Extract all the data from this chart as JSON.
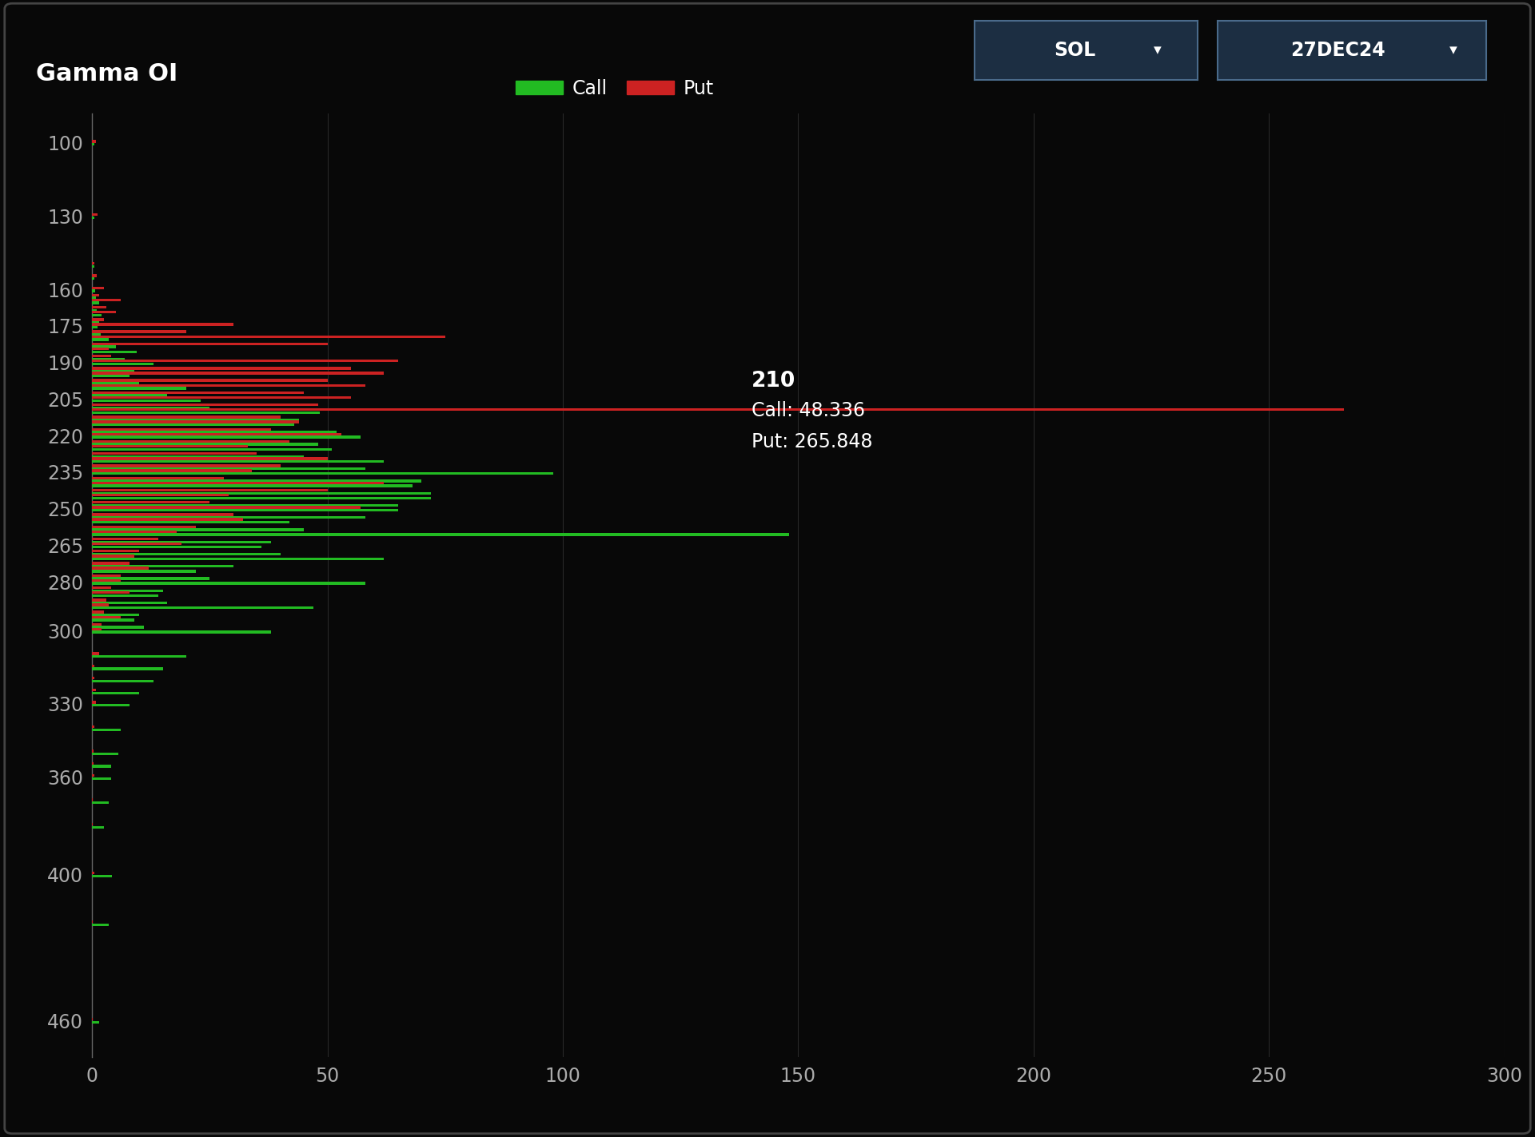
{
  "title": "Gamma OI",
  "ticker": "SOL",
  "expiry": "27DEC24",
  "background_color": "#080808",
  "call_color": "#22bb22",
  "put_color": "#cc2222",
  "text_color": "#aaaaaa",
  "annotation_strike": "210",
  "annotation_call": "Call: 48.336",
  "annotation_put": "Put: 265.848",
  "xlim": [
    0,
    300
  ],
  "yticks": [
    100,
    130,
    160,
    175,
    190,
    205,
    220,
    235,
    250,
    265,
    280,
    300,
    330,
    360,
    400,
    460
  ],
  "strikes": [
    100,
    130,
    150,
    155,
    160,
    163,
    165,
    168,
    170,
    173,
    175,
    178,
    180,
    183,
    185,
    188,
    190,
    193,
    195,
    198,
    200,
    203,
    205,
    208,
    210,
    213,
    215,
    218,
    220,
    223,
    225,
    228,
    230,
    233,
    235,
    238,
    240,
    243,
    245,
    248,
    250,
    253,
    255,
    258,
    260,
    263,
    265,
    268,
    270,
    273,
    275,
    278,
    280,
    283,
    285,
    288,
    290,
    293,
    295,
    298,
    300,
    310,
    315,
    320,
    325,
    330,
    340,
    350,
    355,
    360,
    370,
    380,
    400,
    420,
    460
  ],
  "call_vals": [
    0.5,
    0.5,
    0.5,
    0.5,
    0.6,
    0.8,
    1.5,
    1.0,
    2.0,
    1.5,
    1.2,
    1.8,
    3.5,
    5.0,
    9.5,
    7.0,
    13.0,
    9.0,
    8.0,
    10.0,
    20.0,
    16.0,
    23.0,
    25.0,
    48.336,
    44.0,
    43.0,
    52.0,
    57.0,
    48.0,
    51.0,
    45.0,
    62.0,
    58.0,
    98.0,
    70.0,
    68.0,
    72.0,
    72.0,
    65.0,
    65.0,
    58.0,
    42.0,
    45.0,
    148.0,
    38.0,
    36.0,
    40.0,
    62.0,
    30.0,
    22.0,
    25.0,
    58.0,
    15.0,
    14.0,
    16.0,
    47.0,
    10.0,
    9.0,
    11.0,
    38.0,
    20.0,
    15.0,
    13.0,
    10.0,
    8.0,
    6.0,
    5.5,
    4.0,
    4.0,
    3.5,
    2.5,
    4.2,
    3.5,
    1.5
  ],
  "put_vals": [
    0.8,
    1.2,
    0.5,
    1.0,
    2.5,
    1.5,
    6.0,
    3.0,
    5.0,
    2.5,
    30.0,
    20.0,
    75.0,
    50.0,
    3.5,
    4.0,
    65.0,
    55.0,
    62.0,
    50.0,
    58.0,
    45.0,
    55.0,
    48.0,
    265.848,
    40.0,
    44.0,
    38.0,
    53.0,
    42.0,
    33.0,
    35.0,
    50.0,
    40.0,
    34.0,
    28.0,
    62.0,
    50.0,
    29.0,
    25.0,
    57.0,
    30.0,
    32.0,
    22.0,
    18.0,
    14.0,
    19.0,
    10.0,
    9.0,
    8.0,
    12.0,
    6.0,
    6.0,
    4.0,
    8.0,
    3.0,
    3.5,
    2.5,
    6.0,
    2.0,
    2.0,
    1.5,
    0.5,
    0.5,
    0.8,
    0.8,
    0.5,
    0.3,
    0.3,
    0.5,
    0.2,
    0.2,
    0.5,
    0.2,
    0.1
  ]
}
